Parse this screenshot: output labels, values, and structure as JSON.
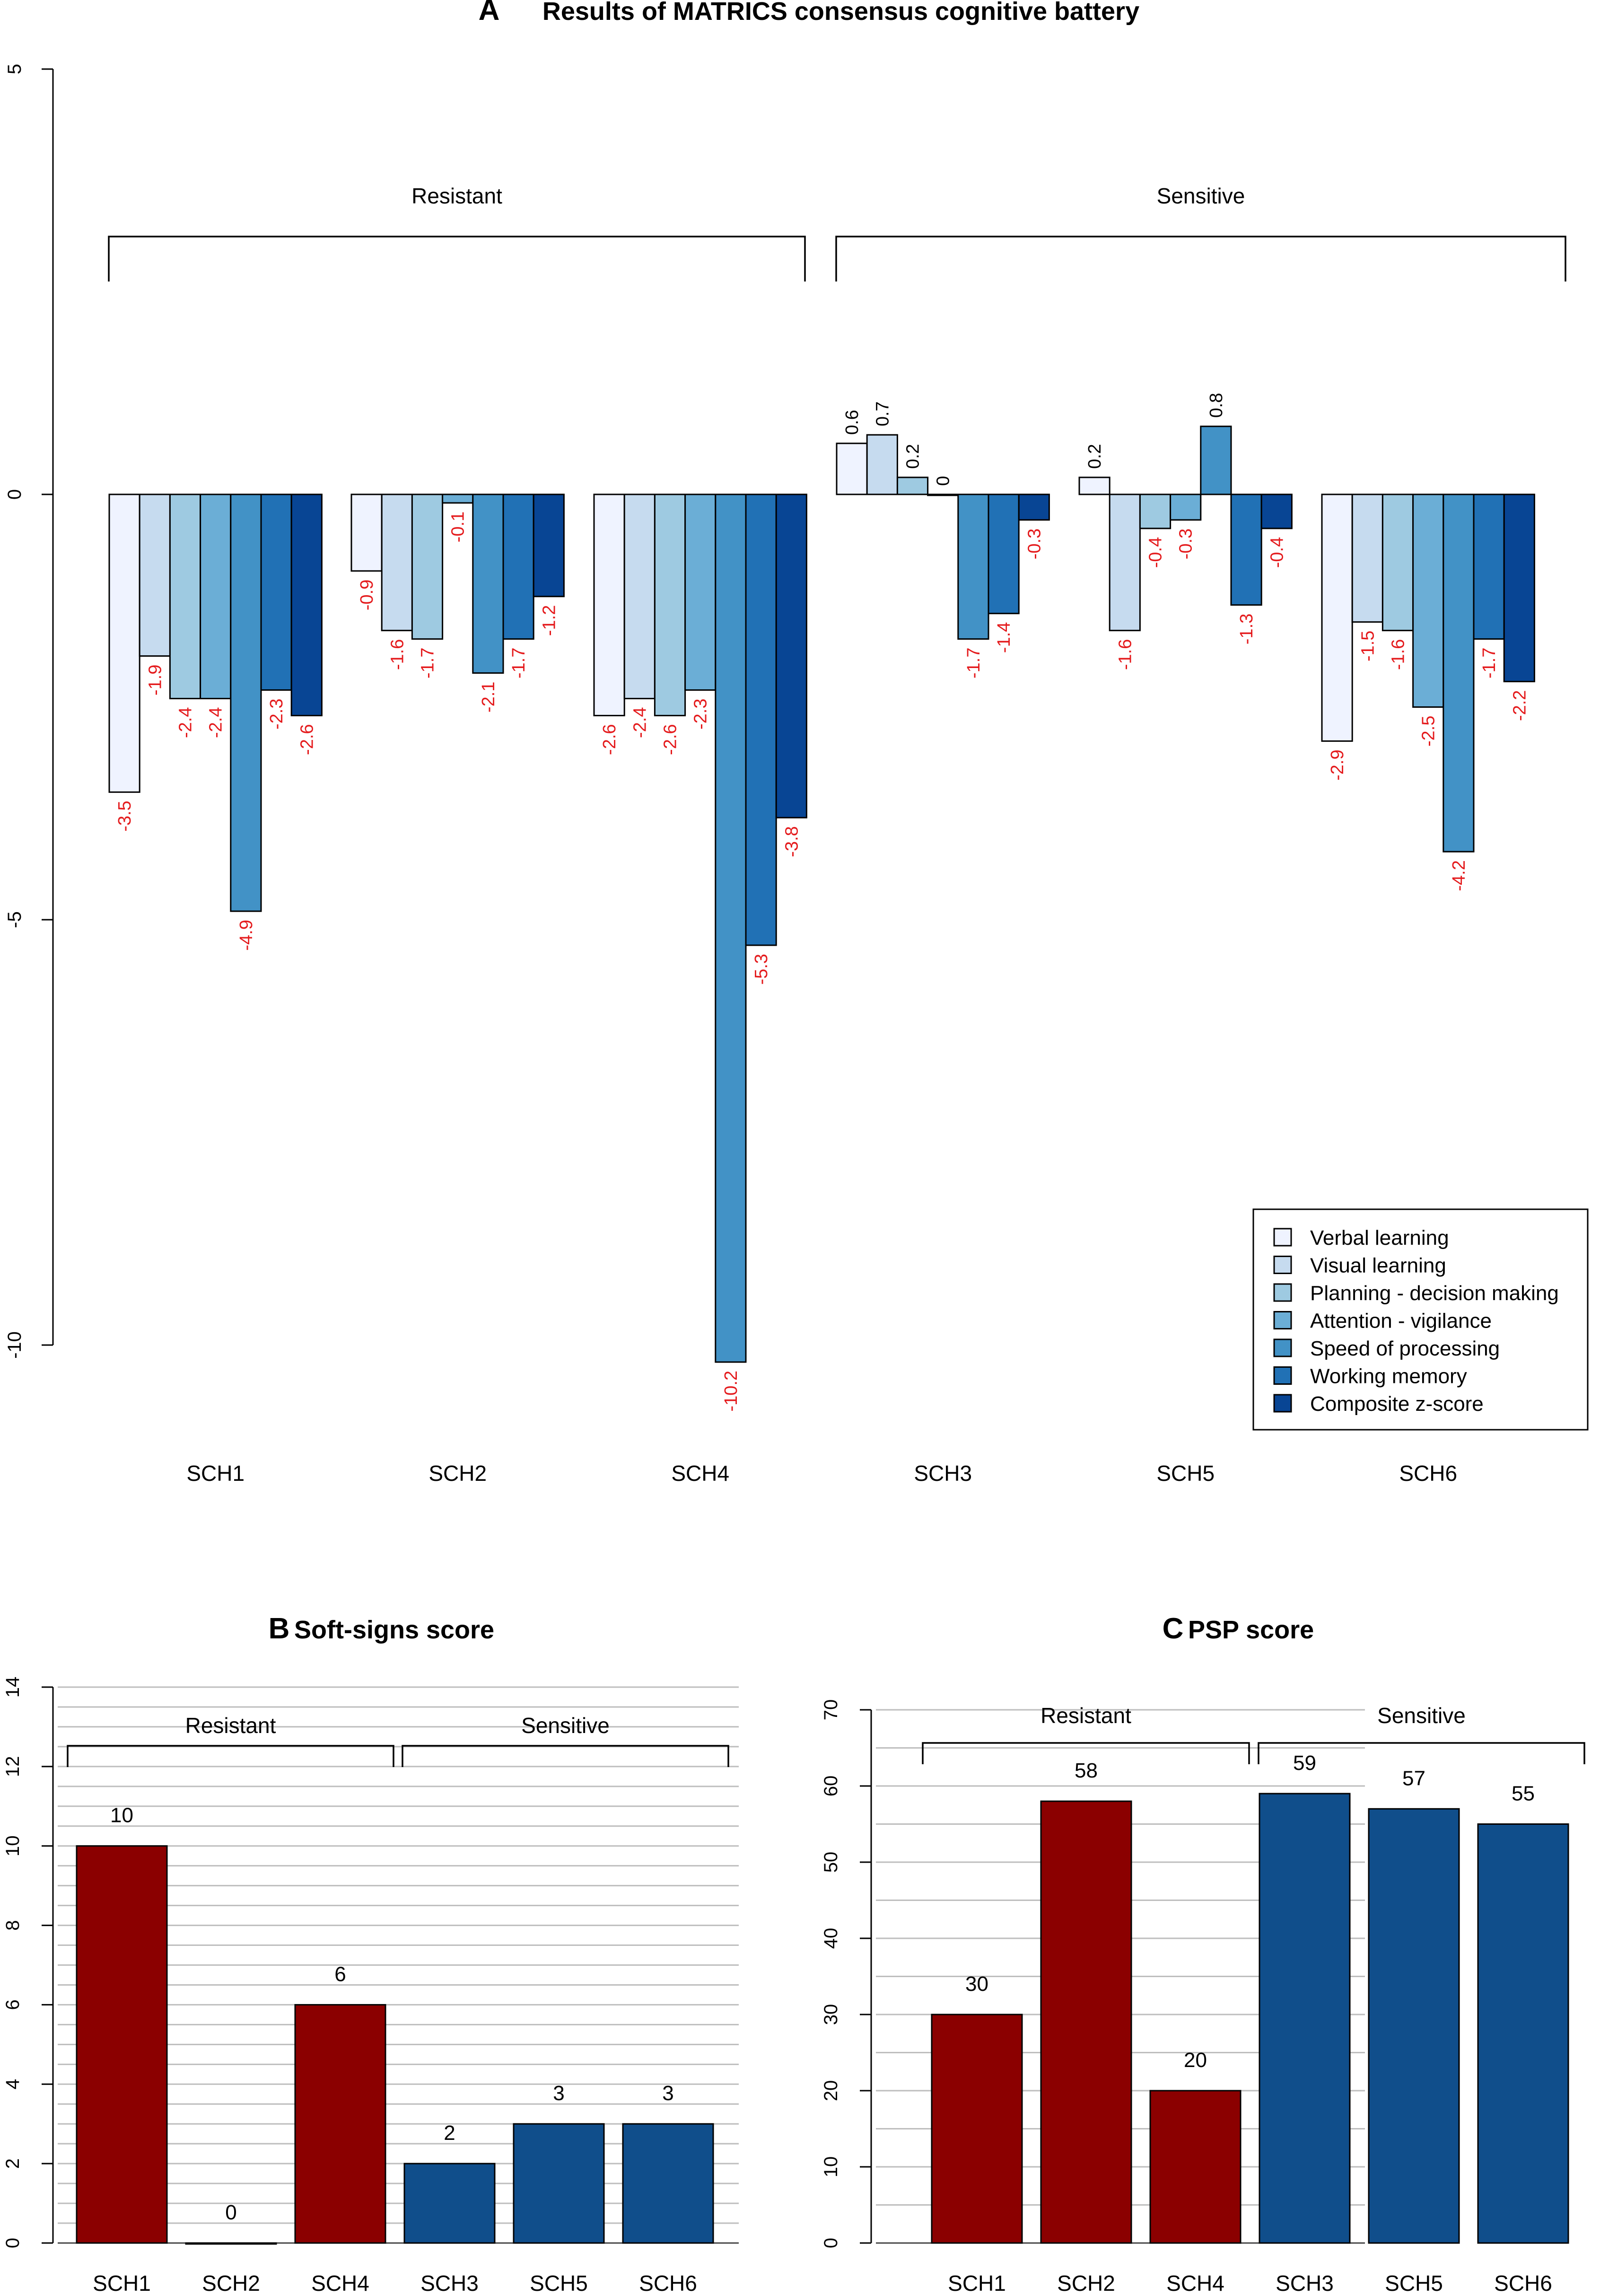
{
  "figure": {
    "panel_letters": [
      "A",
      "B",
      "C"
    ]
  },
  "colors": {
    "series": [
      "#eff3ff",
      "#c6dbef",
      "#9ecae1",
      "#6baed6",
      "#4292c6",
      "#2171b5",
      "#084594"
    ],
    "resistant": "#8b0000",
    "sensitive": "#104e8b",
    "neg_label": "#e41a1c",
    "pos_label": "#000000",
    "grid": "#bebebe"
  },
  "chart_data": [
    {
      "panel": "A",
      "type": "bar",
      "title": "Results of MATRICS consensus cognitive battery",
      "ylim": [
        -10,
        5
      ],
      "yticks": [
        "5",
        "0",
        "-5",
        "-10"
      ],
      "categories": [
        "SCH1",
        "SCH2",
        "SCH4",
        "SCH3",
        "SCH5",
        "SCH6"
      ],
      "groups": [
        {
          "label": "Resistant",
          "categories": [
            "SCH1",
            "SCH2",
            "SCH4"
          ]
        },
        {
          "label": "Sensitive",
          "categories": [
            "SCH3",
            "SCH5",
            "SCH6"
          ]
        }
      ],
      "series": [
        {
          "name": "Verbal learning",
          "values": [
            -3.5,
            -0.9,
            -2.6,
            0.6,
            0.2,
            -2.9
          ],
          "labels": [
            "-3.5",
            "-0.9",
            "-2.6",
            "0.6",
            "0.2",
            "-2.9"
          ]
        },
        {
          "name": "Visual learning",
          "values": [
            -1.9,
            -1.6,
            -2.4,
            0.7,
            -1.6,
            -1.5
          ],
          "labels": [
            "-1.9",
            "-1.6",
            "-2.4",
            "0.7",
            "-1.6",
            "-1.5"
          ]
        },
        {
          "name": "Planning - decision making",
          "values": [
            -2.4,
            -1.7,
            -2.6,
            0.2,
            -0.4,
            -1.6
          ],
          "labels": [
            "-2.4",
            "-1.7",
            "-2.6",
            "0.2",
            "-0.4",
            "-1.6"
          ]
        },
        {
          "name": "Attention - vigilance",
          "values": [
            -2.4,
            -0.1,
            -2.3,
            0,
            -0.3,
            -2.5
          ],
          "labels": [
            "-2.4",
            "-0.1",
            "-2.3",
            "0",
            "-0.3",
            "-2.5"
          ]
        },
        {
          "name": "Speed of processing",
          "values": [
            -4.9,
            -2.1,
            -10.2,
            -1.7,
            0.8,
            -4.2
          ],
          "labels": [
            "-4.9",
            "-2.1",
            "-10.2",
            "-1.7",
            "0.8",
            "-4.2"
          ]
        },
        {
          "name": "Working memory",
          "values": [
            -2.3,
            -1.7,
            -5.3,
            -1.4,
            -1.3,
            -1.7
          ],
          "labels": [
            "-2.3",
            "-1.7",
            "-5.3",
            "-1.4",
            "-1.3",
            "-1.7"
          ]
        },
        {
          "name": "Composite z-score",
          "values": [
            -2.6,
            -1.2,
            -3.8,
            -0.3,
            -0.4,
            -2.2
          ],
          "labels": [
            "-2.6",
            "-1.2",
            "-3.8",
            "-0.3",
            "-0.4",
            "-2.2"
          ]
        }
      ],
      "legend": "bottom-right"
    },
    {
      "panel": "B",
      "type": "bar",
      "title": "Soft-signs score",
      "ylim": [
        0,
        14
      ],
      "yticks": [
        "0",
        "2",
        "4",
        "6",
        "8",
        "10",
        "12",
        "14"
      ],
      "grid": true,
      "categories": [
        "SCH1",
        "SCH2",
        "SCH4",
        "SCH3",
        "SCH5",
        "SCH6"
      ],
      "values": [
        10,
        0,
        6,
        2,
        3,
        3
      ],
      "value_labels": [
        "10",
        "0",
        "6",
        "2",
        "3",
        "3"
      ],
      "groups": [
        {
          "label": "Resistant",
          "categories": [
            "SCH1",
            "SCH2",
            "SCH4"
          ]
        },
        {
          "label": "Sensitive",
          "categories": [
            "SCH3",
            "SCH5",
            "SCH6"
          ]
        }
      ]
    },
    {
      "panel": "C",
      "type": "bar",
      "title": "PSP score",
      "ylim": [
        0,
        70
      ],
      "yticks": [
        "0",
        "10",
        "20",
        "30",
        "40",
        "50",
        "60",
        "70"
      ],
      "grid": true,
      "categories": [
        "SCH1",
        "SCH2",
        "SCH4",
        "SCH3",
        "SCH5",
        "SCH6"
      ],
      "values": [
        30,
        58,
        20,
        59,
        57,
        55
      ],
      "value_labels": [
        "30",
        "58",
        "20",
        "59",
        "57",
        "55"
      ],
      "groups": [
        {
          "label": "Resistant",
          "categories": [
            "SCH1",
            "SCH2",
            "SCH4"
          ]
        },
        {
          "label": "Sensitive",
          "categories": [
            "SCH3",
            "SCH5",
            "SCH6"
          ]
        }
      ]
    }
  ]
}
